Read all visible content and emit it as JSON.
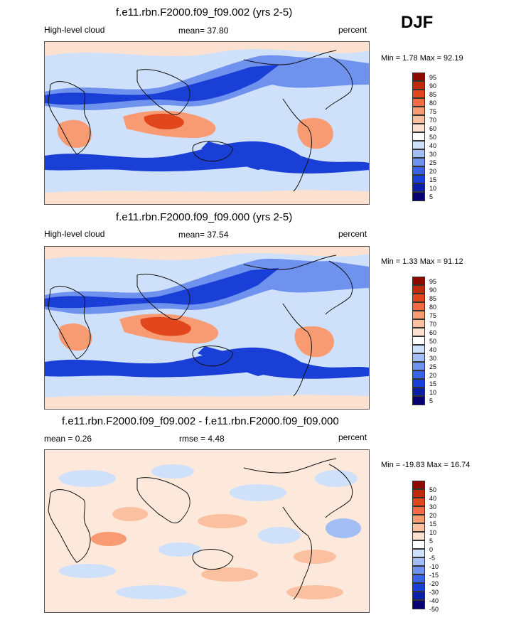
{
  "season": "DJF",
  "colors": {
    "seq": [
      "#08006e",
      "#0b1fa6",
      "#1a3fd6",
      "#3a63e6",
      "#6f92ee",
      "#a3bef5",
      "#cfe0fa",
      "#ffffff",
      "#fde1d0",
      "#fbc0a0",
      "#f89a72",
      "#f36b44",
      "#e2461c",
      "#c02a0c",
      "#8c0a00"
    ],
    "div": [
      "#08006e",
      "#0b1fa6",
      "#1a3fd6",
      "#3a63e6",
      "#6f92ee",
      "#a3bef5",
      "#cfe0fa",
      "#ffffff",
      "#fde1d0",
      "#fbc0a0",
      "#f89a72",
      "#f36b44",
      "#e2461c",
      "#c02a0c",
      "#8c0a00"
    ]
  },
  "panels": [
    {
      "title": "f.e11.rbn.F2000.f09_f09.002 (yrs 2-5)",
      "left": "High-level cloud",
      "center": "mean=  37.80",
      "right": "percent",
      "minmax": "Min =   1.78 Max =  92.19",
      "levels": [
        "95",
        "90",
        "85",
        "80",
        "75",
        "70",
        "60",
        "50",
        "40",
        "30",
        "25",
        "20",
        "15",
        "10",
        "5"
      ]
    },
    {
      "title": "f.e11.rbn.F2000.f09_f09.000 (yrs 2-5)",
      "left": "High-level cloud",
      "center": "mean=  37.54",
      "right": "percent",
      "minmax": "Min =   1.33 Max =  91.12",
      "levels": [
        "95",
        "90",
        "85",
        "80",
        "75",
        "70",
        "60",
        "50",
        "40",
        "30",
        "25",
        "20",
        "15",
        "10",
        "5"
      ]
    },
    {
      "title": "f.e11.rbn.F2000.f09_f09.002 - f.e11.rbn.F2000.f09_f09.000",
      "left": "mean =   0.26",
      "center": "rmse =   4.48",
      "right": "percent",
      "minmax": "Min = -19.83 Max =  16.74",
      "levels": [
        "50",
        "40",
        "30",
        "20",
        "15",
        "10",
        "5",
        "0",
        "-5",
        "-10",
        "-15",
        "-20",
        "-30",
        "-40",
        "-50"
      ]
    }
  ]
}
